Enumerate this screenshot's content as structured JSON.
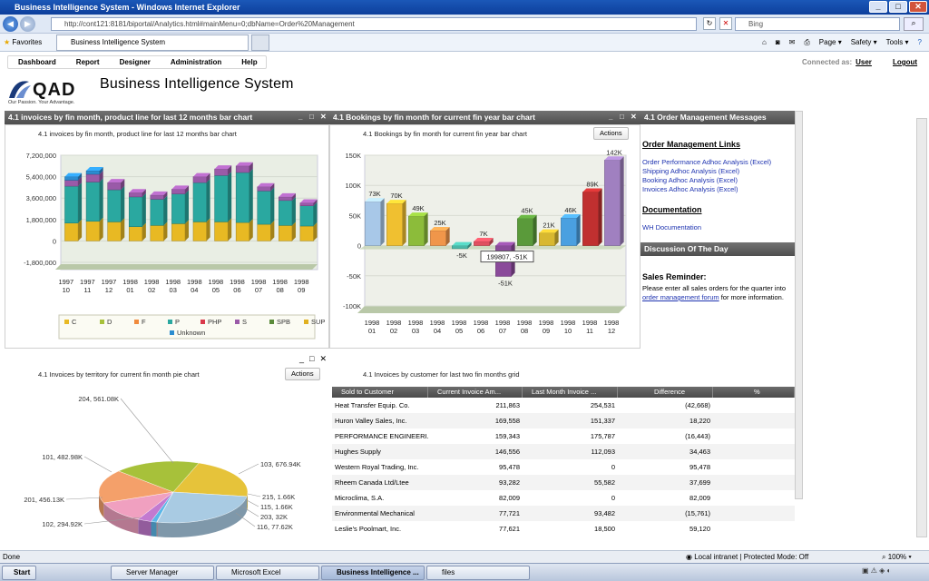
{
  "window": {
    "title": "Business Intelligence System - Windows Internet Explorer"
  },
  "browser": {
    "url": "http://cont121:8181/biportal/Analytics.html#mainMenu=0;dbName=Order%20Management",
    "search_placeholder": "Bing",
    "favorites_label": "Favorites",
    "tab_label": "Business Intelligence System",
    "cmd": [
      "Page ▾",
      "Safety ▾",
      "Tools ▾"
    ]
  },
  "app": {
    "menu": [
      "Dashboard",
      "Report",
      "Designer",
      "Administration",
      "Help"
    ],
    "connected_label": "Connected as:",
    "user": "User",
    "logout": "Logout",
    "logo_text": "QAD",
    "logo_tagline": "Our Passion. Your Advantage.",
    "title": "Business Intelligence System"
  },
  "panels": {
    "invoices_header": "4.1 invoices by fin month, product line for last 12 months bar chart",
    "invoices_title": "4.1 invoices by fin month, product line for last 12 months bar chart",
    "bookings_header": "4.1 Bookings by fin month for current fin year bar chart",
    "bookings_title": "4.1 Bookings by fin month for current fin year bar chart",
    "messages_header": "4.1 Order Management Messages",
    "actions": "Actions",
    "territory_title": "4.1 Invoices by territory for current fin month pie chart",
    "customer_title": "4.1 Invoices by customer for last two fin months grid",
    "discussion_header": "Discussion Of The Day"
  },
  "messages": {
    "links_title": "Order Management Links",
    "links": [
      "Order Performance Adhoc Analysis (Excel)",
      "Shipping Adhoc Analysis (Excel)",
      "Booking Adhoc Analysis (Excel)",
      "Invoices Adhoc Analysis (Excel)"
    ],
    "doc_title": "Documentation",
    "doc_link": "WH Documentation",
    "reminder_title": "Sales Reminder:",
    "reminder_pre": "Please enter all sales orders for the quarter into",
    "reminder_link": "order management forum",
    "reminder_post": "for more information."
  },
  "grid": {
    "columns": [
      "Sold to Customer",
      "Current Invoice Am...",
      "Last Month Invoice ...",
      "Difference",
      "%"
    ],
    "rows": [
      [
        "Heat Transfer Equip. Co.",
        "211,863",
        "254,531",
        "(42,668)",
        ""
      ],
      [
        "Huron Valley Sales, Inc.",
        "169,558",
        "151,337",
        "18,220",
        ""
      ],
      [
        "PERFORMANCE ENGINEERI...",
        "159,343",
        "175,787",
        "(16,443)",
        ""
      ],
      [
        "Hughes Supply",
        "146,556",
        "112,093",
        "34,463",
        ""
      ],
      [
        "Western Royal Trading, Inc.",
        "95,478",
        "0",
        "95,478",
        ""
      ],
      [
        "Rheem Canada Ltd/Ltee",
        "93,282",
        "55,582",
        "37,699",
        ""
      ],
      [
        "Microclima, S.A.",
        "82,009",
        "0",
        "82,009",
        ""
      ],
      [
        "Environmental Mechanical",
        "77,721",
        "93,482",
        "(15,761)",
        ""
      ],
      [
        "Leslie's Poolmart, Inc.",
        "77,621",
        "18,500",
        "59,120",
        ""
      ]
    ]
  },
  "status": {
    "left": "Done",
    "zone": "Local intranet | Protected Mode: Off",
    "zoom": "100%"
  },
  "taskbar": {
    "start": "Start",
    "items": [
      "Server Manager",
      "Microsoft Excel",
      "Business Intelligence ...",
      "files"
    ]
  },
  "chart_data": [
    {
      "type": "bar",
      "title": "4.1 invoices by fin month, product line for last 12 months bar chart",
      "categories": [
        "1997 10",
        "1997 11",
        "1997 12",
        "1998 01",
        "1998 02",
        "1998 03",
        "1998 04",
        "1998 05",
        "1998 06",
        "1998 07",
        "1998 08",
        "1998 09"
      ],
      "yticks": [
        "7,200,000",
        "5,400,000",
        "3,600,000",
        "1,800,000",
        "0",
        "-1,800,000"
      ],
      "ylim": [
        -1800000,
        7200000
      ],
      "stacked": true,
      "series": [
        {
          "name": "C",
          "color": "#e8b923",
          "values": [
            1500000,
            1650000,
            1600000,
            1200000,
            1300000,
            1450000,
            1600000,
            1600000,
            1550000,
            1400000,
            1300000,
            1250000
          ]
        },
        {
          "name": "D",
          "color": "#a7c13a",
          "values": [
            0,
            0,
            0,
            0,
            0,
            0,
            0,
            0,
            0,
            0,
            0,
            0
          ]
        },
        {
          "name": "F",
          "color": "#f08a3c",
          "values": [
            0,
            0,
            0,
            0,
            0,
            0,
            0,
            0,
            0,
            0,
            0,
            0
          ]
        },
        {
          "name": "P",
          "color": "#2aa8a0",
          "values": [
            3100000,
            3300000,
            2700000,
            2500000,
            2200000,
            2500000,
            3300000,
            3900000,
            4200000,
            2800000,
            2100000,
            1700000
          ]
        },
        {
          "name": "PHP",
          "color": "#d9394b",
          "values": [
            0,
            0,
            0,
            0,
            0,
            0,
            0,
            0,
            0,
            0,
            0,
            0
          ]
        },
        {
          "name": "S",
          "color": "#9a5aa8",
          "values": [
            500000,
            650000,
            600000,
            350000,
            350000,
            400000,
            500000,
            550000,
            550000,
            350000,
            300000,
            250000
          ]
        },
        {
          "name": "SPB",
          "color": "#5a8a3a",
          "values": [
            0,
            0,
            0,
            0,
            0,
            0,
            0,
            0,
            0,
            0,
            0,
            0
          ]
        },
        {
          "name": "SUP",
          "color": "#e0b020",
          "values": [
            0,
            0,
            0,
            0,
            0,
            0,
            0,
            0,
            0,
            0,
            0,
            0
          ]
        },
        {
          "name": "Unknown",
          "color": "#2b8cd0",
          "values": [
            300000,
            300000,
            0,
            0,
            0,
            0,
            0,
            0,
            0,
            0,
            0,
            0
          ]
        }
      ]
    },
    {
      "type": "bar",
      "title": "4.1 Bookings by fin month for current fin year bar chart",
      "categories": [
        "1998 01",
        "1998 02",
        "1998 03",
        "1998 04",
        "1998 05",
        "1998 06",
        "1998 07",
        "1998 08",
        "1998 09",
        "1998 10",
        "1998 11",
        "1998 12"
      ],
      "values": [
        73000,
        70000,
        49000,
        25000,
        -5000,
        7000,
        -51000,
        45000,
        21000,
        46000,
        89000,
        142000
      ],
      "labels": [
        "73K",
        "70K",
        "49K",
        "25K",
        "-5K",
        "7K",
        "-51K",
        "45K",
        "21K",
        "46K",
        "89K",
        "142K"
      ],
      "colors": [
        "#a8c8e8",
        "#f0c030",
        "#8cbc3a",
        "#f0964a",
        "#4ab8a8",
        "#e05060",
        "#8a4a9a",
        "#5a9a3a",
        "#d8b830",
        "#4aa0e0",
        "#c03030",
        "#a080c0"
      ],
      "yticks": [
        "150K",
        "100K",
        "50K",
        "0",
        "-50K",
        "-100K"
      ],
      "ylim": [
        -100000,
        150000
      ],
      "tooltip": "199807, -51K"
    },
    {
      "type": "pie",
      "title": "4.1 Invoices by territory for current fin month pie chart",
      "labels": [
        "204, 561.08K",
        "103, 676.94K",
        "215, 1.66K",
        "115, 1.66K",
        "203, 32K",
        "116, 77.62K",
        "102, 294.92K",
        "201, 456.13K",
        "101, 482.98K"
      ],
      "values": [
        561.08,
        676.94,
        1.66,
        1.66,
        32,
        77.62,
        294.92,
        456.13,
        482.98
      ]
    }
  ]
}
